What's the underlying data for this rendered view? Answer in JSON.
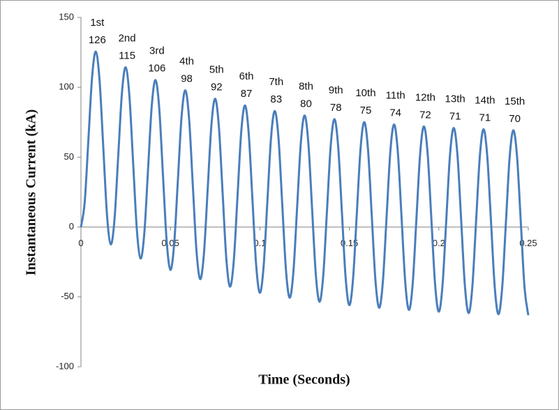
{
  "chart_data": {
    "type": "line",
    "xlabel": "Time (Seconds)",
    "ylabel": "Instantaneous Current (kA)",
    "x": [
      0,
      0.00208,
      0.00417,
      0.00625,
      0.00833,
      0.01042,
      0.0125,
      0.01458,
      0.01667,
      0.01875,
      0.02083,
      0.02292,
      0.025,
      0.02708,
      0.02917,
      0.03125,
      0.03333,
      0.03542,
      0.0375,
      0.03958,
      0.04167,
      0.04375,
      0.04583,
      0.04792,
      0.05,
      0.05208,
      0.05417,
      0.05625,
      0.05833,
      0.06042,
      0.0625,
      0.06458,
      0.06667,
      0.06875,
      0.07083,
      0.07292,
      0.075,
      0.07708,
      0.07917,
      0.08125,
      0.08333,
      0.08542,
      0.0875,
      0.08958,
      0.09167,
      0.09375,
      0.09583,
      0.09792,
      0.1,
      0.10208,
      0.10417,
      0.10625,
      0.10833,
      0.11042,
      0.1125,
      0.11458,
      0.11667,
      0.11875,
      0.12083,
      0.12292,
      0.125,
      0.12708,
      0.12917,
      0.13125,
      0.13333,
      0.13542,
      0.1375,
      0.13958,
      0.14167,
      0.14375,
      0.14583,
      0.14792,
      0.15,
      0.15208,
      0.15417,
      0.15625,
      0.15833,
      0.16042,
      0.1625,
      0.16458,
      0.16667,
      0.16875,
      0.17083,
      0.17292,
      0.175,
      0.17708,
      0.17917,
      0.18125,
      0.18333,
      0.18542,
      0.1875,
      0.18958,
      0.19167,
      0.19375,
      0.19583,
      0.19792,
      0.2,
      0.20208,
      0.20417,
      0.20625,
      0.20833,
      0.21042,
      0.2125,
      0.21458,
      0.21667,
      0.21875,
      0.22083,
      0.22292,
      0.225,
      0.22708,
      0.22917,
      0.23125,
      0.23333,
      0.23542,
      0.2375,
      0.23958,
      0.24167,
      0.24375,
      0.24583,
      0.24792,
      0.25
    ],
    "series": [
      {
        "color": "#4a7ebb",
        "values": [
          0,
          17.6,
          62.7,
          107.7,
          125.5,
          104.6,
          56.5,
          8.3,
          -12.4,
          5.5,
          50.9,
          96.2,
          114.3,
          93.7,
          45.8,
          -2.0,
          -22.5,
          -4.3,
          41.3,
          86.9,
          105.2,
          84.9,
          37.2,
          -10.4,
          -30.7,
          -12.3,
          33.5,
          79.3,
          97.8,
          77.7,
          30.2,
          -17.2,
          -37.3,
          -18.7,
          27.2,
          73.2,
          91.8,
          71.9,
          24.5,
          -22.8,
          -42.7,
          -24.0,
          22.1,
          68.2,
          87.0,
          67.1,
          19.9,
          -27.3,
          -47.1,
          -28.2,
          18.0,
          64.2,
          83.0,
          63.3,
          16.2,
          -30.9,
          -50.6,
          -31.7,
          14.6,
          60.9,
          79.8,
          60.1,
          13.1,
          -33.9,
          -53.5,
          -34.5,
          11.8,
          58.2,
          77.2,
          57.6,
          10.7,
          -36.3,
          -55.9,
          -36.8,
          9.6,
          56.0,
          75.1,
          55.6,
          8.7,
          -38.2,
          -57.8,
          -38.7,
          7.8,
          54.3,
          73.4,
          53.9,
          7.0,
          -39.8,
          -59.3,
          -40.2,
          6.3,
          52.8,
          72.0,
          52.5,
          5.7,
          -41.1,
          -60.6,
          -41.4,
          5.1,
          51.7,
          70.9,
          51.4,
          4.6,
          -42.2,
          -61.6,
          -42.4,
          4.2,
          50.7,
          70.0,
          50.5,
          3.8,
          -43.0,
          -62.4,
          -43.2,
          3.4,
          50.0,
          69.2,
          49.8,
          3.1,
          -43.7,
          -63.1
        ]
      }
    ],
    "xlim": [
      0,
      0.25
    ],
    "ylim": [
      -100,
      150
    ],
    "xticks": [
      0,
      0.05,
      0.1,
      0.15,
      0.2,
      0.25
    ],
    "yticks": [
      -100,
      -50,
      0,
      50,
      100,
      150
    ],
    "grid": false,
    "annotations": [
      {
        "text": "1st",
        "value": 126
      },
      {
        "text": "2nd",
        "value": 115
      },
      {
        "text": "3rd",
        "value": 106
      },
      {
        "text": "4th",
        "value": 98
      },
      {
        "text": "5th",
        "value": 92
      },
      {
        "text": "6th",
        "value": 87
      },
      {
        "text": "7th",
        "value": 83
      },
      {
        "text": "8th",
        "value": 80
      },
      {
        "text": "9th",
        "value": 78
      },
      {
        "text": "10th",
        "value": 75
      },
      {
        "text": "11th",
        "value": 74
      },
      {
        "text": "12th",
        "value": 72
      },
      {
        "text": "13th",
        "value": 71
      },
      {
        "text": "14th",
        "value": 71
      },
      {
        "text": "15th",
        "value": 70
      }
    ]
  }
}
